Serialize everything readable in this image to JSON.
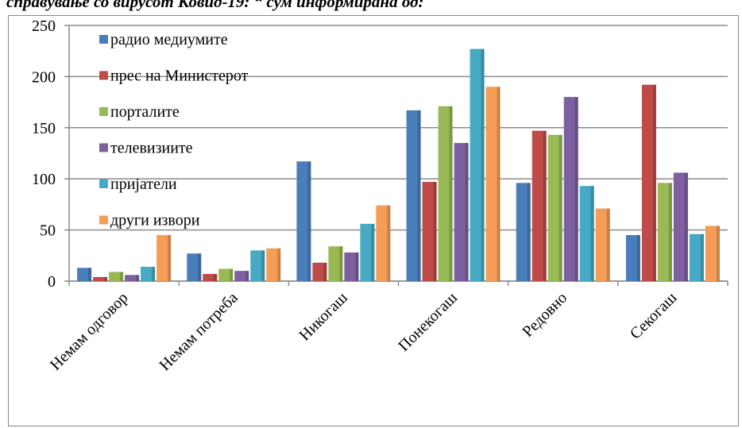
{
  "chart_data": {
    "type": "bar",
    "title": "справување со вирусот Ковид-19: “ сум информирана од:",
    "categories": [
      "Немам одговор",
      "Немам потреба",
      "Никогаш",
      "Понекогаш",
      "Редовно",
      "Секогаш"
    ],
    "series": [
      {
        "name": "радио медиумите",
        "color": "#4a7ebb",
        "values": [
          13,
          27,
          117,
          167,
          96,
          45
        ]
      },
      {
        "name": "прес  на Министерот",
        "color": "#be4b48",
        "values": [
          4,
          7,
          18,
          97,
          147,
          192
        ]
      },
      {
        "name": "порталите",
        "color": "#98b954",
        "values": [
          9,
          12,
          34,
          171,
          143,
          96
        ]
      },
      {
        "name": "телевизиите",
        "color": "#7d60a0",
        "values": [
          6,
          10,
          28,
          135,
          180,
          106
        ]
      },
      {
        "name": "пријатели",
        "color": "#46aac5",
        "values": [
          14,
          30,
          56,
          227,
          93,
          46
        ]
      },
      {
        "name": "други извори",
        "color": "#f59d56",
        "values": [
          45,
          32,
          74,
          190,
          71,
          54
        ]
      }
    ],
    "ylim": [
      0,
      250
    ],
    "yticks": [
      0,
      50,
      100,
      150,
      200,
      250
    ],
    "grid": true,
    "legend": "top-left"
  }
}
